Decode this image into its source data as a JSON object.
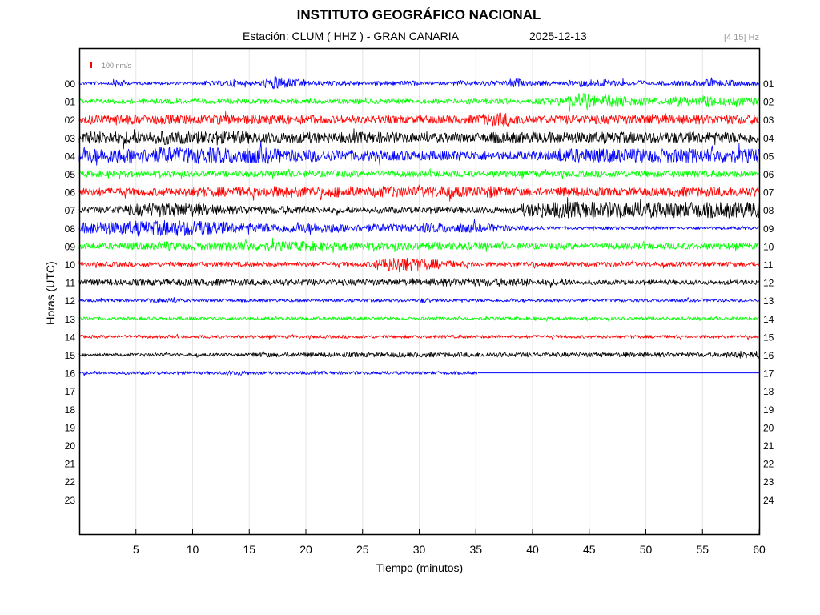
{
  "header": {
    "title": "INSTITUTO GEOGRÁFICO NACIONAL",
    "station": "Estación:  CLUM ( HHZ ) - GRAN CANARIA",
    "date": "2025-12-13",
    "filter": "[4 15] Hz"
  },
  "chart_data": {
    "type": "line",
    "title": "INSTITUTO GEOGRÁFICO NACIONAL",
    "xlabel": "Tiempo (minutos)",
    "ylabel": "Horas (UTC)",
    "xlim": [
      0,
      60
    ],
    "x_ticks": [
      "5",
      "10",
      "15",
      "20",
      "25",
      "30",
      "35",
      "40",
      "45",
      "50",
      "55",
      "60"
    ],
    "left_hour_labels": [
      "00",
      "01",
      "02",
      "03",
      "04",
      "05",
      "06",
      "07",
      "08",
      "09",
      "10",
      "11",
      "12",
      "13",
      "14",
      "15",
      "16",
      "17",
      "18",
      "19",
      "20",
      "21",
      "22",
      "23"
    ],
    "right_hour_labels": [
      "01",
      "02",
      "03",
      "04",
      "05",
      "06",
      "07",
      "08",
      "09",
      "10",
      "11",
      "12",
      "13",
      "14",
      "15",
      "16",
      "17",
      "18",
      "19",
      "20",
      "21",
      "22",
      "23",
      "24"
    ],
    "scale_label": "100 nm/s",
    "grid": true,
    "colors": {
      "blue": "#0000ff",
      "green": "#00ff00",
      "red": "#ff0000",
      "black": "#000000",
      "scale": "#ff0000"
    },
    "series": [
      {
        "hour": "00",
        "color": "#0000ff",
        "end_min": 60,
        "activity": [
          2,
          2,
          2,
          5,
          2,
          2,
          2,
          2,
          2,
          2,
          2,
          3,
          3,
          5,
          3,
          3,
          6,
          9,
          6,
          5,
          3,
          3,
          3,
          3,
          3,
          2,
          3,
          3,
          3,
          3,
          2,
          2,
          2,
          3,
          3,
          3,
          3,
          3,
          6,
          3,
          3,
          3,
          2,
          4,
          5,
          5,
          5,
          4,
          3,
          4,
          2,
          3,
          3,
          3,
          4,
          5,
          4,
          4,
          3,
          3
        ]
      },
      {
        "hour": "01",
        "color": "#00ff00",
        "end_min": 60,
        "activity": [
          3,
          3,
          3,
          3,
          3,
          3,
          3,
          3,
          3,
          3,
          3,
          3,
          3,
          3,
          3,
          3,
          3,
          3,
          3,
          3,
          3,
          3,
          3,
          3,
          3,
          3,
          3,
          3,
          3,
          3,
          3,
          3,
          3,
          3,
          4,
          3,
          3,
          4,
          3,
          3,
          4,
          4,
          5,
          8,
          11,
          7,
          8,
          7,
          6,
          5,
          5,
          4,
          6,
          6,
          5,
          7,
          5,
          5,
          5,
          5
        ]
      },
      {
        "hour": "02",
        "color": "#ff0000",
        "end_min": 60,
        "activity": [
          5,
          6,
          5,
          7,
          6,
          6,
          6,
          6,
          6,
          6,
          6,
          6,
          6,
          6,
          6,
          6,
          6,
          6,
          6,
          6,
          6,
          5,
          5,
          5,
          5,
          5,
          5,
          5,
          5,
          5,
          5,
          5,
          5,
          5,
          5,
          7,
          8,
          9,
          7,
          6,
          5,
          5,
          5,
          6,
          6,
          6,
          6,
          6,
          6,
          6,
          7,
          6,
          6,
          6,
          6,
          6,
          6,
          6,
          6,
          6
        ]
      },
      {
        "hour": "03",
        "color": "#000000",
        "end_min": 60,
        "activity": [
          8,
          8,
          8,
          8,
          8,
          8,
          8,
          9,
          8,
          8,
          8,
          8,
          8,
          8,
          8,
          7,
          7,
          7,
          7,
          7,
          7,
          7,
          7,
          7,
          7,
          7,
          7,
          7,
          6,
          6,
          6,
          6,
          6,
          6,
          6,
          6,
          7,
          7,
          7,
          7,
          7,
          7,
          7,
          7,
          7,
          7,
          7,
          7,
          7,
          7,
          7,
          7,
          7,
          7,
          7,
          7,
          7,
          7,
          7,
          7
        ]
      },
      {
        "hour": "04",
        "color": "#0000ff",
        "end_min": 60,
        "activity": [
          9,
          9,
          9,
          10,
          10,
          10,
          10,
          11,
          10,
          10,
          10,
          10,
          10,
          10,
          10,
          10,
          10,
          9,
          8,
          8,
          8,
          7,
          7,
          7,
          7,
          7,
          7,
          6,
          6,
          6,
          6,
          6,
          6,
          6,
          6,
          6,
          5,
          5,
          5,
          5,
          6,
          6,
          9,
          9,
          9,
          9,
          9,
          9,
          9,
          9,
          9,
          9,
          9,
          9,
          9,
          9,
          9,
          9,
          9,
          9
        ]
      },
      {
        "hour": "05",
        "color": "#00ff00",
        "end_min": 60,
        "activity": [
          4,
          4,
          4,
          4,
          4,
          4,
          4,
          4,
          4,
          4,
          4,
          4,
          4,
          4,
          4,
          4,
          4,
          4,
          4,
          4,
          4,
          4,
          4,
          4,
          4,
          4,
          4,
          4,
          4,
          4,
          4,
          4,
          4,
          4,
          4,
          4,
          4,
          4,
          4,
          4,
          4,
          4,
          4,
          4,
          4,
          4,
          4,
          4,
          4,
          4,
          4,
          4,
          4,
          4,
          4,
          4,
          4,
          4,
          4,
          4
        ]
      },
      {
        "hour": "06",
        "color": "#ff0000",
        "end_min": 60,
        "activity": [
          5,
          5,
          5,
          5,
          5,
          5,
          5,
          5,
          5,
          5,
          6,
          6,
          6,
          6,
          6,
          6,
          7,
          7,
          7,
          7,
          6,
          6,
          7,
          7,
          6,
          6,
          7,
          7,
          6,
          6,
          7,
          7,
          7,
          7,
          6,
          6,
          8,
          6,
          5,
          5,
          5,
          5,
          6,
          6,
          6,
          6,
          5,
          5,
          5,
          5,
          5,
          5,
          6,
          6,
          6,
          6,
          6,
          6,
          6,
          6
        ]
      },
      {
        "hour": "07",
        "color": "#000000",
        "end_min": 60,
        "activity": [
          4,
          4,
          5,
          6,
          7,
          8,
          9,
          9,
          9,
          9,
          8,
          7,
          6,
          5,
          5,
          5,
          5,
          5,
          5,
          5,
          4,
          4,
          4,
          4,
          4,
          4,
          4,
          4,
          4,
          4,
          4,
          4,
          4,
          4,
          4,
          4,
          4,
          4,
          4,
          8,
          10,
          10,
          10,
          10,
          10,
          10,
          10,
          10,
          10,
          10,
          10,
          10,
          10,
          10,
          10,
          10,
          10,
          10,
          10,
          10
        ]
      },
      {
        "hour": "08",
        "color": "#0000ff",
        "end_min": 60,
        "activity": [
          7,
          8,
          8,
          8,
          9,
          9,
          9,
          10,
          10,
          10,
          10,
          9,
          8,
          7,
          6,
          6,
          6,
          6,
          6,
          6,
          6,
          6,
          6,
          5,
          5,
          5,
          5,
          5,
          5,
          5,
          6,
          6,
          6,
          6,
          6,
          5,
          5,
          4,
          3,
          3,
          3,
          2,
          2,
          2,
          2,
          2,
          2,
          2,
          2,
          2,
          2,
          2,
          2,
          2,
          2,
          2,
          2,
          2,
          2,
          2
        ]
      },
      {
        "hour": "09",
        "color": "#00ff00",
        "end_min": 60,
        "activity": [
          4,
          4,
          4,
          4,
          5,
          5,
          5,
          6,
          5,
          5,
          5,
          5,
          5,
          6,
          6,
          6,
          6,
          6,
          6,
          6,
          6,
          5,
          5,
          5,
          5,
          5,
          5,
          5,
          5,
          5,
          5,
          5,
          5,
          5,
          5,
          5,
          4,
          4,
          4,
          4,
          4,
          4,
          4,
          4,
          4,
          4,
          4,
          4,
          4,
          4,
          4,
          4,
          4,
          4,
          4,
          4,
          4,
          4,
          4,
          4
        ]
      },
      {
        "hour": "10",
        "color": "#ff0000",
        "end_min": 60,
        "activity": [
          3,
          3,
          3,
          3,
          3,
          3,
          3,
          3,
          3,
          3,
          3,
          3,
          3,
          3,
          3,
          3,
          3,
          3,
          3,
          3,
          3,
          3,
          3,
          3,
          3,
          3,
          7,
          9,
          9,
          8,
          7,
          6,
          5,
          4,
          3,
          3,
          3,
          3,
          3,
          3,
          3,
          3,
          3,
          3,
          3,
          3,
          3,
          3,
          3,
          3,
          3,
          3,
          3,
          3,
          3,
          3,
          3,
          3,
          3,
          3
        ]
      },
      {
        "hour": "11",
        "color": "#000000",
        "end_min": 60,
        "activity": [
          4,
          4,
          4,
          4,
          4,
          4,
          4,
          4,
          4,
          4,
          4,
          4,
          4,
          4,
          4,
          4,
          4,
          4,
          4,
          4,
          4,
          4,
          4,
          4,
          4,
          4,
          4,
          4,
          4,
          4,
          4,
          5,
          5,
          5,
          5,
          5,
          5,
          5,
          5,
          5,
          4,
          4,
          4,
          4,
          3,
          3,
          3,
          3,
          3,
          3,
          3,
          3,
          3,
          3,
          3,
          3,
          3,
          3,
          3,
          3
        ]
      },
      {
        "hour": "12",
        "color": "#0000ff",
        "end_min": 60,
        "activity": [
          2,
          2,
          2,
          2,
          2,
          2,
          3,
          3,
          3,
          2,
          2,
          2,
          2,
          2,
          2,
          2,
          2,
          2,
          2,
          2,
          2,
          2,
          2,
          2,
          2,
          2,
          2,
          2,
          2,
          2,
          3,
          2,
          2,
          2,
          2,
          2,
          2,
          2,
          2,
          2,
          2,
          2,
          2,
          2,
          2,
          2,
          2,
          2,
          2,
          2,
          2,
          2,
          2,
          2,
          2,
          2,
          2,
          2,
          2,
          2
        ]
      },
      {
        "hour": "13",
        "color": "#00ff00",
        "end_min": 60,
        "activity": [
          2,
          2,
          2,
          2,
          2,
          2,
          2,
          2,
          2,
          2,
          2,
          2,
          2,
          2,
          2,
          2,
          2,
          2,
          2,
          2,
          2,
          2,
          2,
          2,
          2,
          2,
          2,
          2,
          2,
          2,
          2,
          2,
          2,
          2,
          2,
          2,
          2,
          2,
          2,
          2,
          2,
          2,
          2,
          2,
          2,
          2,
          2,
          2,
          2,
          2,
          2,
          2,
          2,
          2,
          2,
          2,
          2,
          2,
          2,
          2
        ]
      },
      {
        "hour": "14",
        "color": "#ff0000",
        "end_min": 60,
        "activity": [
          2,
          2,
          2,
          2,
          2,
          2,
          2,
          2,
          2,
          2,
          2,
          2,
          2,
          2,
          2,
          2,
          2,
          2,
          2,
          2,
          2,
          2,
          2,
          2,
          2,
          2,
          2,
          2,
          2,
          2,
          2,
          2,
          2,
          2,
          2,
          2,
          2,
          2,
          2,
          2,
          2,
          2,
          2,
          2,
          2,
          2,
          2,
          2,
          2,
          2,
          2,
          2,
          2,
          2,
          2,
          2,
          2,
          2,
          2,
          2
        ]
      },
      {
        "hour": "15",
        "color": "#000000",
        "end_min": 60,
        "activity": [
          2,
          2,
          2,
          2,
          2,
          2,
          2,
          2,
          2,
          2,
          2,
          2,
          2,
          2,
          2,
          3,
          3,
          3,
          3,
          3,
          3,
          3,
          3,
          3,
          3,
          3,
          3,
          3,
          3,
          3,
          3,
          3,
          3,
          3,
          3,
          3,
          3,
          3,
          3,
          3,
          3,
          3,
          3,
          3,
          3,
          3,
          3,
          3,
          3,
          3,
          3,
          3,
          3,
          3,
          3,
          3,
          3,
          4,
          5,
          5
        ]
      },
      {
        "hour": "16",
        "color": "#0000ff",
        "end_min": 35.2,
        "activity": [
          2,
          2,
          2,
          2,
          2,
          2,
          2,
          2,
          2,
          2,
          2,
          2,
          2,
          3,
          3,
          2,
          2,
          2,
          2,
          2,
          2,
          2,
          2,
          2,
          2,
          2,
          2,
          2,
          2,
          2,
          2,
          2,
          2,
          2,
          2,
          2
        ]
      }
    ]
  }
}
